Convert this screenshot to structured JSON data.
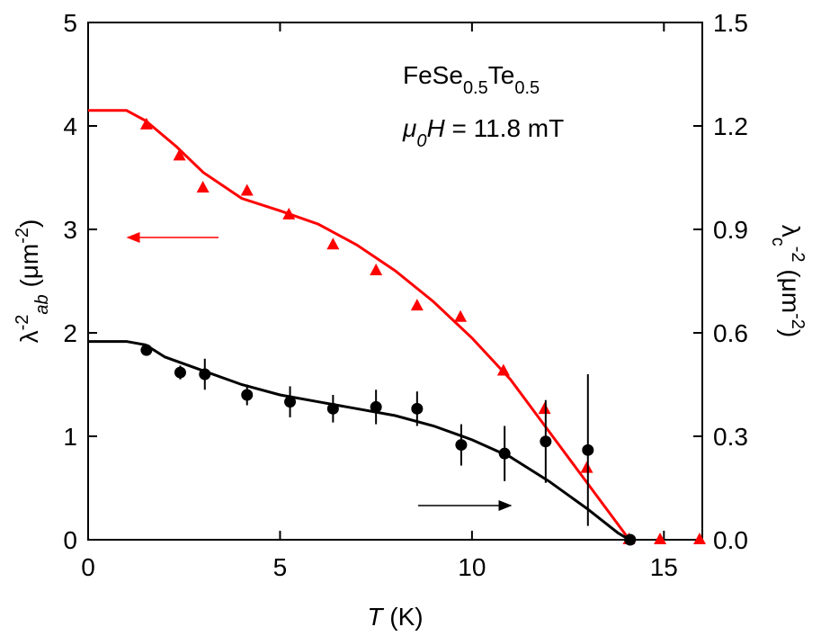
{
  "chart_data": {
    "type": "scatter",
    "xlim": [
      0,
      16
    ],
    "xticks": [
      0,
      5,
      10,
      15
    ],
    "ylim": [
      0,
      5
    ],
    "yticks": [
      0,
      1,
      2,
      3,
      4,
      5
    ],
    "y2lim": [
      0,
      1.5
    ],
    "y2ticks": [
      {
        "value": 0,
        "label": "0.0"
      },
      0.3,
      0.6,
      0.9,
      1.2,
      1.5
    ],
    "x_label": [
      {
        "text": "T",
        "style": "italic"
      },
      {
        "text": " (K)"
      }
    ],
    "y_label": [
      {
        "text": "λ"
      },
      {
        "text": "-2",
        "style": "super"
      },
      {
        "text": "ab",
        "style": "sub-italic"
      },
      {
        "text": " (μm"
      },
      {
        "text": "-2",
        "style": "super"
      },
      {
        "text": ")"
      }
    ],
    "y2_label": [
      {
        "text": "λ"
      },
      {
        "text": "c",
        "style": "sub"
      },
      {
        "text": "-2",
        "style": "super"
      },
      {
        "text": " (μm"
      },
      {
        "text": "-2",
        "style": "super"
      },
      {
        "text": ")"
      }
    ],
    "annotations": [
      [
        {
          "text": "FeSe"
        },
        {
          "text": "0.5",
          "style": "sub"
        },
        {
          "text": "Te"
        },
        {
          "text": "0.5",
          "style": "sub"
        }
      ],
      [
        {
          "text": "μ",
          "style": "italic"
        },
        {
          "text": "0",
          "style": "sub-italic"
        },
        {
          "text": "H",
          "style": "italic"
        },
        {
          "text": " = 11.8 mT"
        }
      ]
    ],
    "series": [
      {
        "color": "#ff0000",
        "marker": "triangle",
        "x": [
          1.52,
          2.38,
          2.99,
          4.14,
          5.23,
          6.38,
          7.5,
          8.57,
          9.7,
          10.82,
          11.89,
          12.99,
          14.09,
          14.9,
          15.93
        ],
        "values": [
          4.01,
          3.71,
          3.4,
          3.37,
          3.14,
          2.85,
          2.6,
          2.26,
          2.15,
          1.63,
          1.26,
          0.69,
          0,
          0,
          0
        ]
      },
      {
        "color": "#000000",
        "marker": "circle",
        "axis": "y2",
        "x": [
          1.52,
          2.4,
          3.04,
          4.14,
          5.26,
          6.38,
          7.5,
          8.57,
          9.72,
          10.85,
          11.92,
          13.02,
          14.12
        ],
        "values": [
          0.55,
          0.485,
          0.48,
          0.42,
          0.4,
          0.38,
          0.385,
          0.38,
          0.275,
          0.25,
          0.285,
          0.26,
          0
        ],
        "errors": [
          0.01,
          0.02,
          0.045,
          0.03,
          0.045,
          0.04,
          0.05,
          0.05,
          0.06,
          0.08,
          0.12,
          0.22,
          0
        ]
      }
    ],
    "fits": [
      {
        "color": "#ff0000",
        "x": [
          0,
          1,
          1.5,
          2.3,
          3,
          4,
          5,
          6,
          7,
          8,
          9,
          10,
          11,
          12,
          13,
          14,
          14.1
        ],
        "values": [
          4.15,
          4.15,
          4.05,
          3.8,
          3.55,
          3.3,
          3.18,
          3.05,
          2.85,
          2.6,
          2.3,
          1.95,
          1.55,
          1.05,
          0.55,
          0.05,
          0
        ]
      },
      {
        "color": "#000000",
        "axis": "y2",
        "x": [
          0,
          1,
          1.5,
          2,
          3,
          4,
          5,
          6,
          7,
          8,
          9,
          10,
          11,
          12,
          13,
          13.8,
          14.1
        ],
        "values": [
          0.575,
          0.575,
          0.565,
          0.53,
          0.49,
          0.45,
          0.42,
          0.4,
          0.38,
          0.36,
          0.33,
          0.29,
          0.24,
          0.17,
          0.09,
          0.02,
          0
        ]
      }
    ]
  }
}
